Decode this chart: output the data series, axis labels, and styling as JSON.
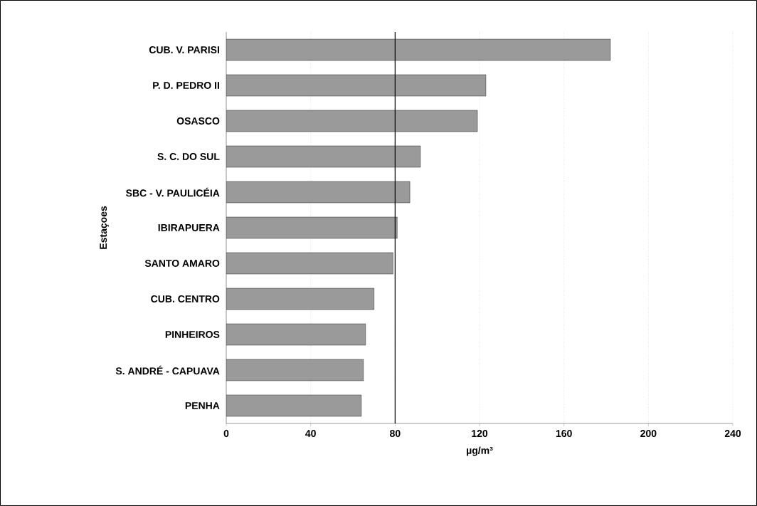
{
  "chart_data": {
    "type": "bar",
    "orientation": "horizontal",
    "xlabel": "µg/m³",
    "ylabel": "Estaçoes",
    "categories": [
      "CUB. V. PARISI",
      "P. D. PEDRO II",
      "OSASCO",
      "S. C. DO SUL",
      "SBC - V. PAULICÉIA",
      "IBIRAPUERA",
      "SANTO AMARO",
      "CUB. CENTRO",
      "PINHEIROS",
      "S. ANDRÉ - CAPUAVA",
      "PENHA"
    ],
    "values": [
      182,
      123,
      119,
      92,
      87,
      81,
      79,
      70,
      66,
      65,
      64
    ],
    "color": "#9a9a9a",
    "xlim": [
      0,
      240
    ],
    "xticks": [
      0,
      40,
      80,
      120,
      160,
      200,
      240
    ],
    "grid": "x",
    "ref_lines": [
      {
        "axis": "x",
        "value": 80,
        "color": "#000000"
      }
    ]
  }
}
